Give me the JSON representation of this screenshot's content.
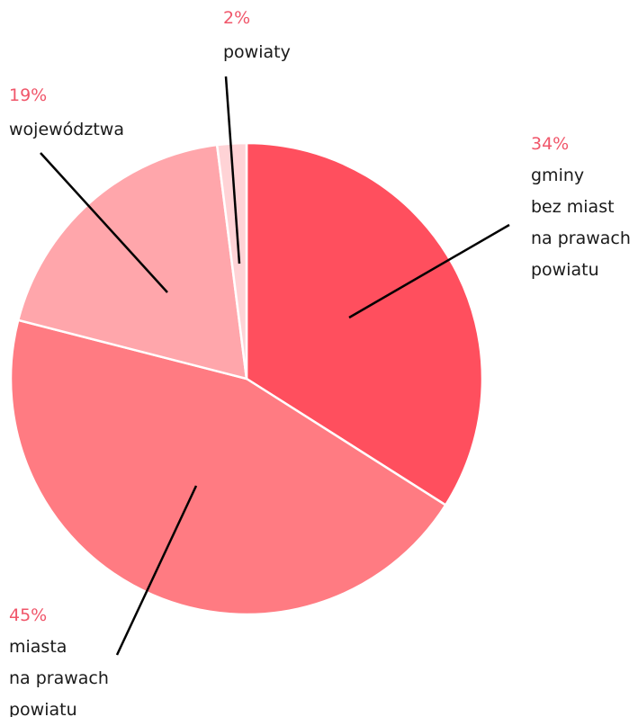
{
  "chart_data": {
    "type": "pie",
    "slices": [
      {
        "value": 34,
        "percent_label": "34%",
        "label_lines": [
          "gminy",
          "bez miast",
          "na prawach",
          "powiatu"
        ],
        "color": "#ff4f5e"
      },
      {
        "value": 45,
        "percent_label": "45%",
        "label_lines": [
          "miasta",
          "na prawach",
          "powiatu"
        ],
        "color": "#ff7b82"
      },
      {
        "value": 19,
        "percent_label": "19%",
        "label_lines": [
          "województwa"
        ],
        "color": "#ffa6ab"
      },
      {
        "value": 2,
        "percent_label": "2%",
        "label_lines": [
          "powiaty"
        ],
        "color": "#ffd3d6"
      }
    ],
    "legend": "none",
    "label_style": "leader-lines",
    "percent_color": "#f0566a",
    "label_color": "#1a1a1a"
  }
}
